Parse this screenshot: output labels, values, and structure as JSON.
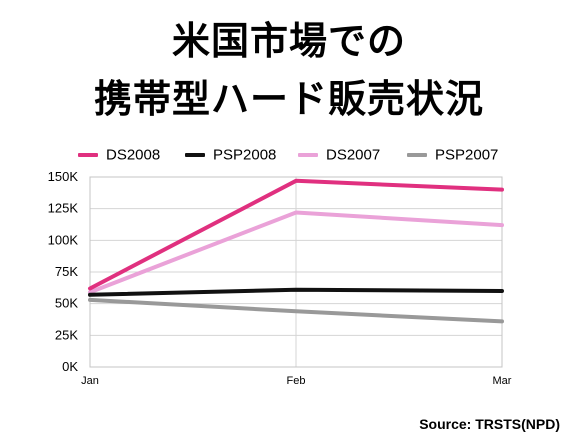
{
  "title_line1": "米国市場での",
  "title_line2": "携帯型ハード販売状況",
  "source": "Source: TRSTS(NPD)",
  "chart_data": {
    "type": "line",
    "categories": [
      "Jan",
      "Feb",
      "Mar"
    ],
    "ylim": [
      0,
      150000
    ],
    "yticks": [
      0,
      25000,
      50000,
      75000,
      100000,
      125000,
      150000
    ],
    "ytick_labels": [
      "0K",
      "25K",
      "50K",
      "75K",
      "100K",
      "125K",
      "150K"
    ],
    "grid": true,
    "legend_position": "top",
    "series": [
      {
        "name": "DS2008",
        "color": "#e0307f",
        "values": [
          62000,
          147000,
          140000
        ]
      },
      {
        "name": "PSP2008",
        "color": "#111111",
        "values": [
          57000,
          61000,
          60000
        ]
      },
      {
        "name": "DS2007",
        "color": "#eaa2d8",
        "values": [
          59000,
          122000,
          112000
        ]
      },
      {
        "name": "PSP2007",
        "color": "#999999",
        "values": [
          53000,
          44000,
          36000
        ]
      }
    ]
  }
}
